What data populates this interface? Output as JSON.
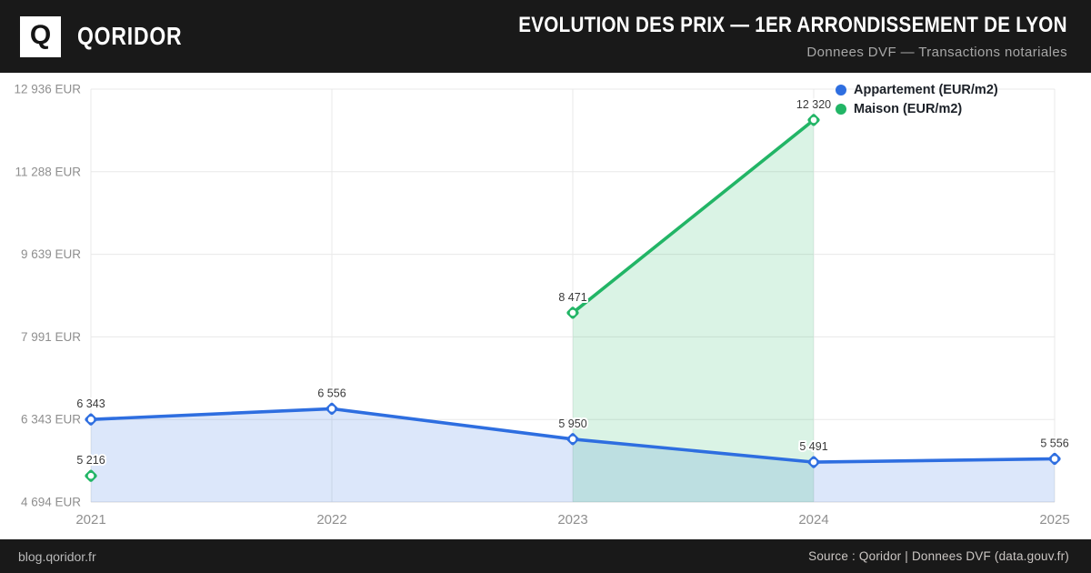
{
  "header": {
    "logo_letter": "Q",
    "brand": "QORIDOR",
    "title": "EVOLUTION DES PRIX — 1ER ARRONDISSEMENT DE LYON",
    "subtitle": "Donnees DVF — Transactions notariales"
  },
  "footer": {
    "left": "blog.qoridor.fr",
    "right": "Source : Qoridor | Donnees DVF (data.gouv.fr)"
  },
  "chart_data": {
    "type": "line",
    "title": "Evolution des prix — 1er arrondissement de Lyon",
    "categories": [
      "2021",
      "2022",
      "2023",
      "2024",
      "2025"
    ],
    "ylim": [
      4694,
      12936
    ],
    "grid": true,
    "legend_position": "top-right",
    "y_ticks": [
      {
        "value": 4694,
        "label": "4 694 EUR"
      },
      {
        "value": 6343,
        "label": "6 343 EUR"
      },
      {
        "value": 7991,
        "label": "7 991 EUR"
      },
      {
        "value": 9639,
        "label": "9 639 EUR"
      },
      {
        "value": 11288,
        "label": "11 288 EUR"
      },
      {
        "value": 12936,
        "label": "12 936 EUR"
      }
    ],
    "series": [
      {
        "name": "Appartement (EUR/m2)",
        "color": "#2e6ee0",
        "fill": "rgba(46,110,224,0.17)",
        "values": [
          6343,
          6556,
          5950,
          5491,
          5556
        ],
        "labels": [
          "6 343",
          "6 556",
          "5 950",
          "5 491",
          "5 556"
        ]
      },
      {
        "name": "Maison (EUR/m2)",
        "color": "#22b566",
        "fill": "rgba(34,181,102,0.17)",
        "values": [
          5216,
          null,
          8471,
          12320,
          null
        ],
        "labels": [
          "5 216",
          null,
          "8 471",
          "12 320",
          null
        ]
      }
    ]
  }
}
